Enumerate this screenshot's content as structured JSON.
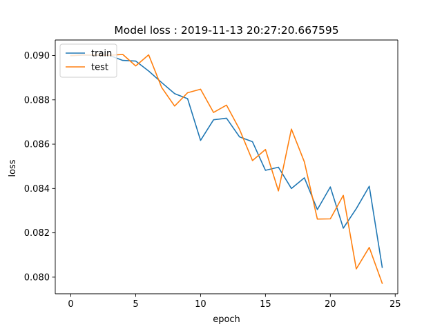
{
  "chart_data": {
    "type": "line",
    "title": "Model loss : 2019-11-13 20:27:20.667595",
    "xlabel": "epoch",
    "ylabel": "loss",
    "xlim": [
      -1.2,
      25.2
    ],
    "ylim": [
      0.07925,
      0.0907
    ],
    "xticks": [
      0,
      5,
      10,
      15,
      20,
      25
    ],
    "yticks": [
      0.08,
      0.082,
      0.084,
      0.086,
      0.088,
      0.09
    ],
    "ytick_labels": [
      "0.080",
      "0.082",
      "0.084",
      "0.086",
      "0.088",
      "0.090"
    ],
    "grid": false,
    "legend": "upper-left",
    "x": [
      0,
      1,
      2,
      3,
      4,
      5,
      6,
      7,
      8,
      9,
      10,
      11,
      12,
      13,
      14,
      15,
      16,
      17,
      18,
      19,
      20,
      21,
      22,
      23,
      24
    ],
    "series": [
      {
        "name": "train",
        "color": "#1f77b4",
        "values": [
          0.08999,
          0.09002,
          0.09001,
          0.09,
          0.08978,
          0.08975,
          0.0893,
          0.08878,
          0.08828,
          0.08805,
          0.08617,
          0.0871,
          0.08717,
          0.08633,
          0.08611,
          0.08482,
          0.08496,
          0.084,
          0.08448,
          0.08305,
          0.08407,
          0.08221,
          0.08309,
          0.0841,
          0.08044
        ]
      },
      {
        "name": "test",
        "color": "#ff7f0e",
        "values": [
          0.09,
          0.09003,
          0.09002,
          0.09001,
          0.09005,
          0.08953,
          0.09003,
          0.08856,
          0.08772,
          0.08832,
          0.08848,
          0.08743,
          0.08776,
          0.08667,
          0.08526,
          0.08576,
          0.08389,
          0.08668,
          0.0852,
          0.08262,
          0.08263,
          0.08369,
          0.08037,
          0.08134,
          0.07972
        ]
      }
    ]
  }
}
